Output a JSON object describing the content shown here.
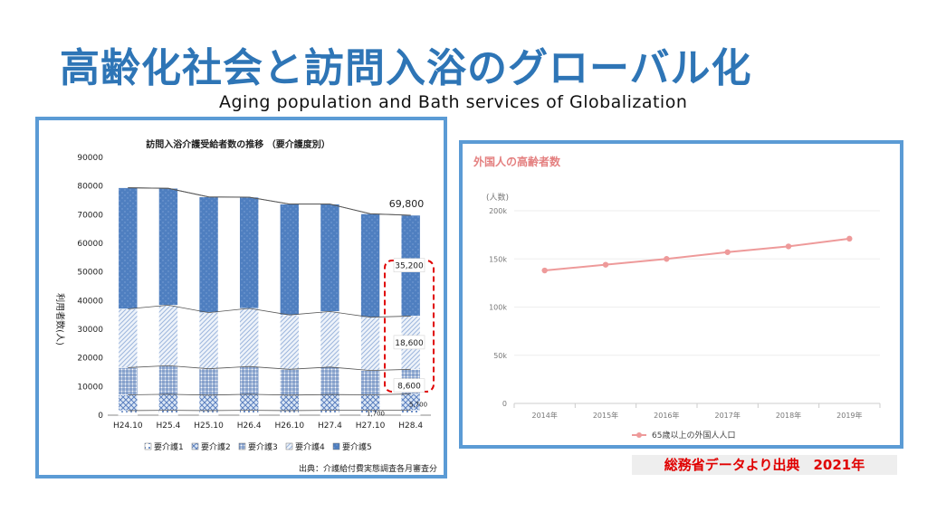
{
  "page": {
    "title": "高齢化社会と訪問入浴のグローバル化",
    "subtitle": "Aging population and Bath services of Globalization",
    "source_note": "総務省データより出典　2021年"
  },
  "colors": {
    "title": "#2e75b6",
    "panel_border": "#5b9bd5",
    "care5": "#4f7fc0",
    "line_series": "#ee9a9a",
    "highlight": "#e00000"
  },
  "chart_data": [
    {
      "type": "bar",
      "stacked": true,
      "title": "訪問入浴介護受給者数の推移 （要介護度別）",
      "ylabel": "利用者数(人)",
      "xlabel": "",
      "ylim": [
        0,
        90000
      ],
      "yticks": [
        "0",
        "10000",
        "20000",
        "30000",
        "40000",
        "50000",
        "60000",
        "70000",
        "80000",
        "90000"
      ],
      "categories": [
        "H24.10",
        "H25.4",
        "H25.10",
        "H26.4",
        "H26.10",
        "H27.4",
        "H27.10",
        "H28.4"
      ],
      "series": [
        {
          "name": "要介護1",
          "values": [
            1600,
            1700,
            1600,
            1700,
            1600,
            1700,
            1700,
            1700
          ]
        },
        {
          "name": "要介護2",
          "values": [
            5500,
            5600,
            5400,
            5600,
            5400,
            5500,
            5400,
            5700
          ]
        },
        {
          "name": "要介護3",
          "values": [
            9500,
            10000,
            9200,
            9700,
            9000,
            9600,
            8500,
            8600
          ]
        },
        {
          "name": "要介護4",
          "values": [
            20500,
            21100,
            19600,
            20300,
            19000,
            19400,
            18600,
            18600
          ]
        },
        {
          "name": "要介護5",
          "values": [
            42300,
            40800,
            40400,
            38800,
            38700,
            37500,
            36100,
            35200
          ]
        }
      ],
      "totals": [
        79400,
        79200,
        76200,
        76100,
        73700,
        73700,
        70300,
        69800
      ],
      "total_label": "69,800",
      "data_labels": [
        "35,200",
        "18,600",
        "8,600",
        "5,700",
        "1,700"
      ],
      "legend_position": "bottom",
      "source": "出典：介護給付費実態調査各月審査分"
    },
    {
      "type": "line",
      "title": "外国人の高齢者数",
      "ylabel": "(人数)",
      "xlabel": "",
      "ylim": [
        0,
        200000
      ],
      "yticks": [
        "0",
        "50k",
        "100k",
        "150k",
        "200k"
      ],
      "categories": [
        "2014年",
        "2015年",
        "2016年",
        "2017年",
        "2018年",
        "2019年"
      ],
      "series": [
        {
          "name": "65歳以上の外国人人口",
          "values": [
            138000,
            144000,
            150000,
            157000,
            163000,
            171000
          ]
        }
      ],
      "grid": true,
      "legend_position": "bottom"
    }
  ]
}
